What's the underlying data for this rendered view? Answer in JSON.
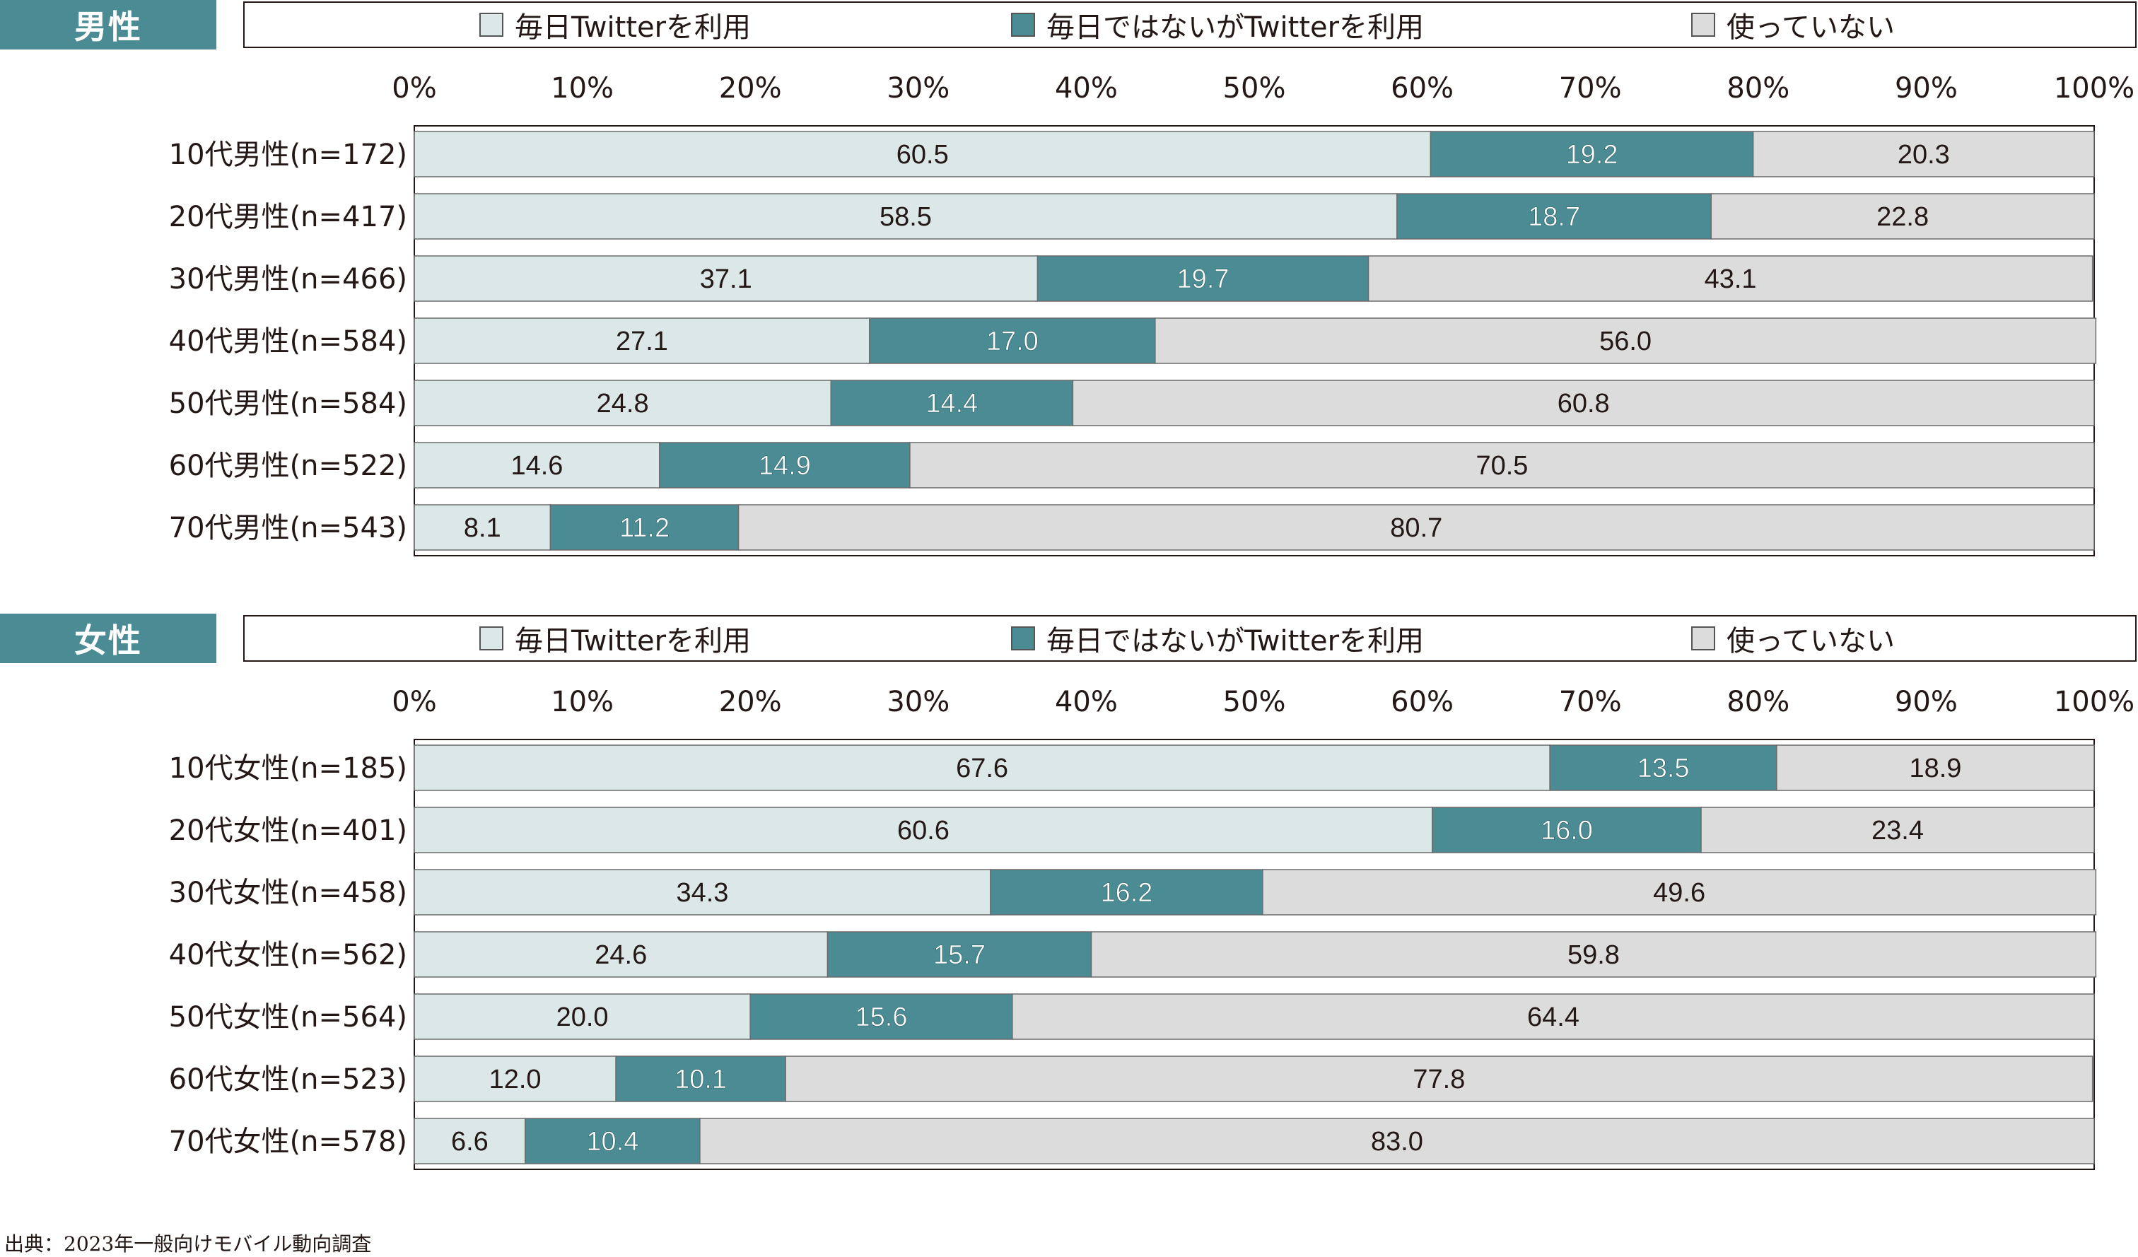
{
  "colors": {
    "daily": "#dce7e8",
    "not_daily": "#4b8c94",
    "not_used": "#dcdcdc",
    "tag_bg": "#4b8c94",
    "border": "#231815"
  },
  "source_text": "出典：2023年一般向けモバイル動向調査",
  "chart_data": [
    {
      "type": "bar",
      "orientation": "horizontal",
      "stacked": true,
      "title": "男性",
      "legend_placement": "top",
      "x_ticks": [
        "0%",
        "10%",
        "20%",
        "30%",
        "40%",
        "50%",
        "60%",
        "70%",
        "80%",
        "90%",
        "100%"
      ],
      "xlim": [
        0,
        100
      ],
      "categories": [
        "10代男性(n=172)",
        "20代男性(n=417)",
        "30代男性(n=466)",
        "40代男性(n=584)",
        "50代男性(n=584)",
        "60代男性(n=522)",
        "70代男性(n=543)"
      ],
      "series": [
        {
          "name": "毎日Twitterを利用",
          "values": [
            60.5,
            58.5,
            37.1,
            27.1,
            24.8,
            14.6,
            8.1
          ]
        },
        {
          "name": "毎日ではないがTwitterを利用",
          "values": [
            19.2,
            18.7,
            19.7,
            17.0,
            14.4,
            14.9,
            11.2
          ]
        },
        {
          "name": "使っていない",
          "values": [
            20.3,
            22.8,
            43.1,
            56.0,
            60.8,
            70.5,
            80.7
          ]
        }
      ]
    },
    {
      "type": "bar",
      "orientation": "horizontal",
      "stacked": true,
      "title": "女性",
      "legend_placement": "top",
      "x_ticks": [
        "0%",
        "10%",
        "20%",
        "30%",
        "40%",
        "50%",
        "60%",
        "70%",
        "80%",
        "90%",
        "100%"
      ],
      "xlim": [
        0,
        100
      ],
      "categories": [
        "10代女性(n=185)",
        "20代女性(n=401)",
        "30代女性(n=458)",
        "40代女性(n=562)",
        "50代女性(n=564)",
        "60代女性(n=523)",
        "70代女性(n=578)"
      ],
      "series": [
        {
          "name": "毎日Twitterを利用",
          "values": [
            67.6,
            60.6,
            34.3,
            24.6,
            20.0,
            12.0,
            6.6
          ]
        },
        {
          "name": "毎日ではないがTwitterを利用",
          "values": [
            13.5,
            16.0,
            16.2,
            15.7,
            15.6,
            10.1,
            10.4
          ]
        },
        {
          "name": "使っていない",
          "values": [
            18.9,
            23.4,
            49.6,
            59.8,
            64.4,
            77.8,
            83.0
          ]
        }
      ]
    }
  ]
}
